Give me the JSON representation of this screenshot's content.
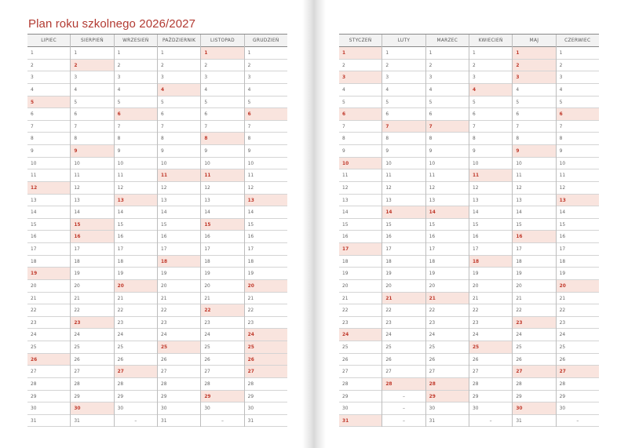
{
  "title": "Plan roku szkolnego 2026/2027",
  "empty_mark": "–",
  "colors": {
    "accent": "#b23a32",
    "highlight_bg": "#f9e4de",
    "highlight_text": "#c0392b"
  },
  "pages": [
    {
      "months": [
        {
          "name": "LIPIEC",
          "days": 31,
          "highlighted": [
            5,
            12,
            19,
            26
          ]
        },
        {
          "name": "SIERPIEŃ",
          "days": 31,
          "highlighted": [
            2,
            9,
            15,
            16,
            23,
            30
          ]
        },
        {
          "name": "WRZESIEŃ",
          "days": 30,
          "highlighted": [
            6,
            13,
            20,
            27
          ]
        },
        {
          "name": "PAŹDZIERNIK",
          "days": 31,
          "highlighted": [
            4,
            11,
            18,
            25
          ]
        },
        {
          "name": "LISTOPAD",
          "days": 30,
          "highlighted": [
            1,
            8,
            11,
            15,
            22,
            29
          ]
        },
        {
          "name": "GRUDZIEŃ",
          "days": 31,
          "highlighted": [
            6,
            13,
            20,
            24,
            25,
            26,
            27
          ]
        }
      ]
    },
    {
      "months": [
        {
          "name": "STYCZEŃ",
          "days": 31,
          "highlighted": [
            1,
            3,
            6,
            10,
            17,
            24,
            31
          ]
        },
        {
          "name": "LUTY",
          "days": 28,
          "highlighted": [
            7,
            14,
            21,
            28
          ]
        },
        {
          "name": "MARZEC",
          "days": 31,
          "highlighted": [
            7,
            14,
            21,
            28,
            29
          ]
        },
        {
          "name": "KWIECIEŃ",
          "days": 30,
          "highlighted": [
            4,
            11,
            18,
            25
          ]
        },
        {
          "name": "MAJ",
          "days": 31,
          "highlighted": [
            1,
            2,
            3,
            9,
            16,
            23,
            27,
            30
          ]
        },
        {
          "name": "CZERWIEC",
          "days": 30,
          "highlighted": [
            6,
            13,
            20,
            27
          ]
        }
      ]
    }
  ]
}
